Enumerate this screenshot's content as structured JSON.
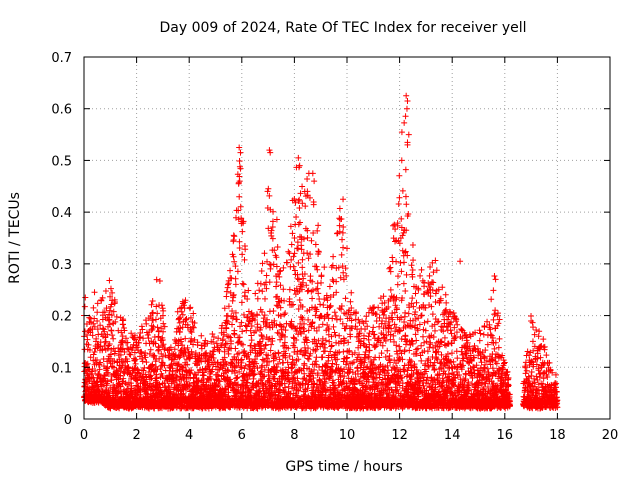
{
  "chart_data": {
    "type": "scatter",
    "title": "Day 009 of 2024, Rate Of TEC Index for receiver yell",
    "xlabel": "GPS time / hours",
    "ylabel": "ROTI / TECUs",
    "xlim": [
      0,
      20
    ],
    "ylim": [
      0,
      0.7
    ],
    "xticks": [
      "0",
      "2",
      "4",
      "6",
      "8",
      "10",
      "12",
      "14",
      "16",
      "18",
      "20"
    ],
    "yticks": [
      "0",
      "0.1",
      "0.2",
      "0.3",
      "0.4",
      "0.5",
      "0.6",
      "0.7"
    ],
    "grid": true,
    "marker": "+",
    "color": "#ff0000",
    "series": [
      {
        "name": "ROTI",
        "envelope": [
          {
            "x": 0.0,
            "base": 0.03,
            "peak": 0.23
          },
          {
            "x": 0.3,
            "base": 0.03,
            "peak": 0.2
          },
          {
            "x": 0.6,
            "base": 0.03,
            "peak": 0.24
          },
          {
            "x": 1.0,
            "base": 0.02,
            "peak": 0.27
          },
          {
            "x": 1.5,
            "base": 0.02,
            "peak": 0.18
          },
          {
            "x": 2.0,
            "base": 0.02,
            "peak": 0.16
          },
          {
            "x": 2.5,
            "base": 0.02,
            "peak": 0.2
          },
          {
            "x": 2.8,
            "base": 0.02,
            "peak": 0.29
          },
          {
            "x": 3.2,
            "base": 0.02,
            "peak": 0.14
          },
          {
            "x": 3.8,
            "base": 0.02,
            "peak": 0.24
          },
          {
            "x": 4.5,
            "base": 0.02,
            "peak": 0.15
          },
          {
            "x": 5.2,
            "base": 0.02,
            "peak": 0.16
          },
          {
            "x": 5.7,
            "base": 0.02,
            "peak": 0.35
          },
          {
            "x": 5.9,
            "base": 0.02,
            "peak": 0.52
          },
          {
            "x": 6.3,
            "base": 0.02,
            "peak": 0.2
          },
          {
            "x": 6.8,
            "base": 0.02,
            "peak": 0.3
          },
          {
            "x": 7.0,
            "base": 0.02,
            "peak": 0.45
          },
          {
            "x": 7.3,
            "base": 0.02,
            "peak": 0.4
          },
          {
            "x": 7.6,
            "base": 0.02,
            "peak": 0.28
          },
          {
            "x": 8.1,
            "base": 0.02,
            "peak": 0.5
          },
          {
            "x": 8.5,
            "base": 0.02,
            "peak": 0.47
          },
          {
            "x": 8.9,
            "base": 0.02,
            "peak": 0.38
          },
          {
            "x": 9.3,
            "base": 0.02,
            "peak": 0.25
          },
          {
            "x": 9.8,
            "base": 0.02,
            "peak": 0.42
          },
          {
            "x": 10.2,
            "base": 0.02,
            "peak": 0.22
          },
          {
            "x": 10.8,
            "base": 0.02,
            "peak": 0.2
          },
          {
            "x": 11.5,
            "base": 0.02,
            "peak": 0.24
          },
          {
            "x": 12.2,
            "base": 0.02,
            "peak": 0.62
          },
          {
            "x": 12.6,
            "base": 0.02,
            "peak": 0.25
          },
          {
            "x": 13.0,
            "base": 0.02,
            "peak": 0.3
          },
          {
            "x": 13.5,
            "base": 0.02,
            "peak": 0.3
          },
          {
            "x": 14.0,
            "base": 0.02,
            "peak": 0.2
          },
          {
            "x": 14.6,
            "base": 0.02,
            "peak": 0.16
          },
          {
            "x": 15.3,
            "base": 0.02,
            "peak": 0.18
          },
          {
            "x": 15.6,
            "base": 0.02,
            "peak": 0.27
          },
          {
            "x": 16.0,
            "base": 0.02,
            "peak": 0.1
          },
          {
            "x": 16.2,
            "base": 0.02,
            "peak": 0.07
          }
        ],
        "segment2_envelope": [
          {
            "x": 16.7,
            "base": 0.02,
            "peak": 0.07
          },
          {
            "x": 17.0,
            "base": 0.02,
            "peak": 0.19
          },
          {
            "x": 17.5,
            "base": 0.02,
            "peak": 0.14
          },
          {
            "x": 18.0,
            "base": 0.02,
            "peak": 0.07
          }
        ],
        "outliers": [
          {
            "x": 12.25,
            "y": 0.625
          },
          {
            "x": 12.3,
            "y": 0.615
          },
          {
            "x": 12.28,
            "y": 0.6
          },
          {
            "x": 12.35,
            "y": 0.55
          },
          {
            "x": 12.3,
            "y": 0.53
          },
          {
            "x": 12.3,
            "y": 0.535
          },
          {
            "x": 12.25,
            "y": 0.365
          },
          {
            "x": 5.9,
            "y": 0.525
          },
          {
            "x": 5.95,
            "y": 0.515
          },
          {
            "x": 5.92,
            "y": 0.46
          },
          {
            "x": 5.88,
            "y": 0.455
          },
          {
            "x": 7.05,
            "y": 0.52
          },
          {
            "x": 7.08,
            "y": 0.515
          },
          {
            "x": 8.15,
            "y": 0.505
          },
          {
            "x": 8.2,
            "y": 0.49
          },
          {
            "x": 8.55,
            "y": 0.475
          },
          {
            "x": 8.7,
            "y": 0.475
          },
          {
            "x": 8.75,
            "y": 0.46
          },
          {
            "x": 9.85,
            "y": 0.425
          },
          {
            "x": 10.0,
            "y": 0.33
          },
          {
            "x": 14.3,
            "y": 0.305
          },
          {
            "x": 15.65,
            "y": 0.27
          },
          {
            "x": 0.4,
            "y": 0.245
          },
          {
            "x": 0.05,
            "y": 0.235
          }
        ]
      }
    ]
  }
}
